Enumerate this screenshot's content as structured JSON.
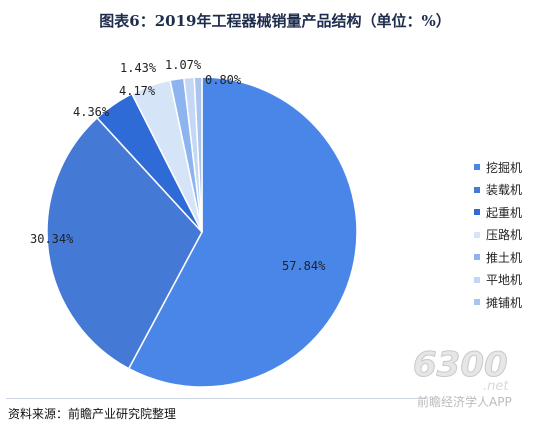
{
  "title": "图表6：2019年工程器械销量产品结构（单位：%）",
  "source": "资料来源：前瞻产业研究院整理",
  "watermark": {
    "number": "6300",
    "suffix": ".net",
    "caption": "前瞻经济学人APP"
  },
  "chart_data": {
    "type": "pie",
    "title": "图表6：2019年工程器械销量产品结构（单位：%）",
    "categories": [
      "挖掘机",
      "装载机",
      "起重机",
      "压路机",
      "推土机",
      "平地机",
      "摊铺机"
    ],
    "values": [
      57.84,
      30.34,
      4.36,
      4.17,
      1.43,
      1.07,
      0.8
    ],
    "labels": [
      "57.84%",
      "30.34%",
      "4.36%",
      "4.17%",
      "1.43%",
      "1.07%",
      "0.80%"
    ],
    "colors": [
      "#4a86e8",
      "#4579d6",
      "#2f6bd6",
      "#d6e4f7",
      "#8db4ee",
      "#c4d8f5",
      "#a9c4ee"
    ],
    "legend_position": "right"
  }
}
